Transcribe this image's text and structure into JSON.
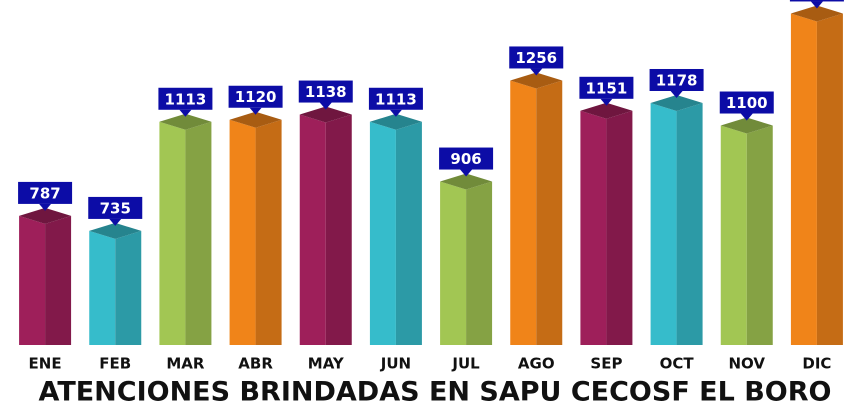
{
  "chart_data": {
    "type": "bar3d",
    "title": "ATENCIONES BRINDADAS EN SAPU CECOSF EL BORO",
    "categories": [
      "ENE",
      "FEB",
      "MAR",
      "ABR",
      "MAY",
      "JUN",
      "JUL",
      "AGO",
      "SEP",
      "OCT",
      "NOV",
      "DIC"
    ],
    "values": [
      787,
      735,
      1113,
      1120,
      1138,
      1113,
      906,
      1256,
      1151,
      1178,
      1100,
      1488
    ],
    "colors": [
      "#9e1f5a",
      "#36bccb",
      "#a2c653",
      "#f08419",
      "#9e1f5a",
      "#36bccb",
      "#a2c653",
      "#f08419",
      "#9e1f5a",
      "#36bccb",
      "#a2c653",
      "#f08419"
    ],
    "label_color": "#0c0ca6",
    "ylim": [
      340,
      1500
    ]
  }
}
